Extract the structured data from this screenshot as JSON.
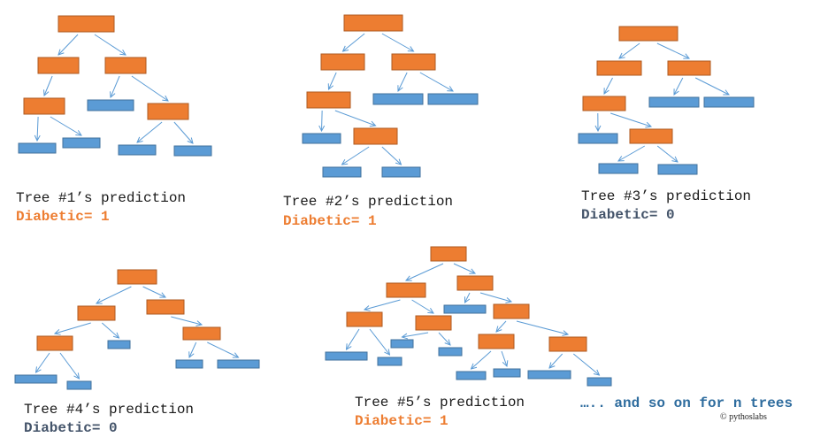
{
  "colors": {
    "internal_node": "#ED7D31",
    "leaf_node": "#5B9BD5",
    "node_border": "#41719C",
    "internal_border": "#AE5A21",
    "arrow": "#5B9BD5",
    "diabetic_1": "#ED7D31",
    "diabetic_0": "#44546A",
    "footer": "#2E6C9E"
  },
  "trees": [
    {
      "id": "tree-1",
      "caption": "Tree #1’s prediction",
      "result": "Diabetic= 1",
      "result_class": 1
    },
    {
      "id": "tree-2",
      "caption": "Tree #2’s prediction",
      "result": "Diabetic= 1",
      "result_class": 1
    },
    {
      "id": "tree-3",
      "caption": "Tree #3’s prediction",
      "result": "Diabetic= 0",
      "result_class": 0
    },
    {
      "id": "tree-4",
      "caption": "Tree #4’s prediction",
      "result": "Diabetic= 0",
      "result_class": 0
    },
    {
      "id": "tree-5",
      "caption": "Tree #5’s prediction",
      "result": "Diabetic= 1",
      "result_class": 1
    }
  ],
  "footer": {
    "text": "….. and so on for n trees",
    "copyright": "© pythoslabs"
  }
}
